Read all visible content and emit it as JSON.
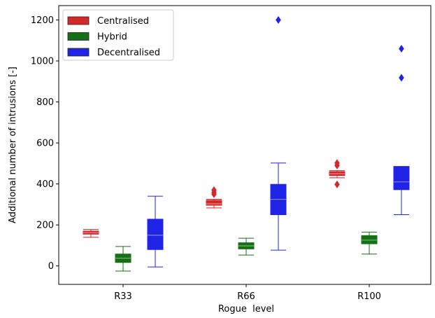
{
  "chart_data": {
    "type": "box",
    "categories": [
      "R33",
      "R66",
      "R100"
    ],
    "xlabel": "Rogue  level",
    "ylabel": "Additional number of intrusions [-]",
    "ylim": [
      -90,
      1270
    ],
    "yticks": [
      0,
      200,
      400,
      600,
      800,
      1000,
      1200
    ],
    "grid": false,
    "legend_position": "top-left",
    "series": [
      {
        "name": "Centralised",
        "color": "#d62728",
        "boxes": [
          {
            "whislo": 140,
            "q1": 155,
            "med": 162,
            "q3": 170,
            "whishi": 178,
            "fliers": []
          },
          {
            "whislo": 283,
            "q1": 296,
            "med": 303,
            "q3": 320,
            "whishi": 325,
            "fliers": [
              350,
              358,
              370
            ]
          },
          {
            "whislo": 430,
            "q1": 441,
            "med": 450,
            "q3": 460,
            "whishi": 465,
            "fliers": [
              398,
              490,
              502
            ]
          }
        ]
      },
      {
        "name": "Hybrid",
        "color": "#157015",
        "boxes": [
          {
            "whislo": -25,
            "q1": 17,
            "med": 38,
            "q3": 58,
            "whishi": 95,
            "fliers": []
          },
          {
            "whislo": 53,
            "q1": 83,
            "med": 98,
            "q3": 113,
            "whishi": 135,
            "fliers": []
          },
          {
            "whislo": 58,
            "q1": 108,
            "med": 126,
            "q3": 148,
            "whishi": 165,
            "fliers": []
          }
        ]
      },
      {
        "name": "Decentralised",
        "color": "#1f24e6",
        "boxes": [
          {
            "whislo": -5,
            "q1": 80,
            "med": 150,
            "q3": 228,
            "whishi": 340,
            "fliers": []
          },
          {
            "whislo": 77,
            "q1": 250,
            "med": 325,
            "q3": 398,
            "whishi": 502,
            "fliers": [
              1200
            ]
          },
          {
            "whislo": 250,
            "q1": 372,
            "med": 410,
            "q3": 485,
            "whishi": 485,
            "fliers": [
              918,
              1060
            ]
          }
        ]
      }
    ]
  }
}
